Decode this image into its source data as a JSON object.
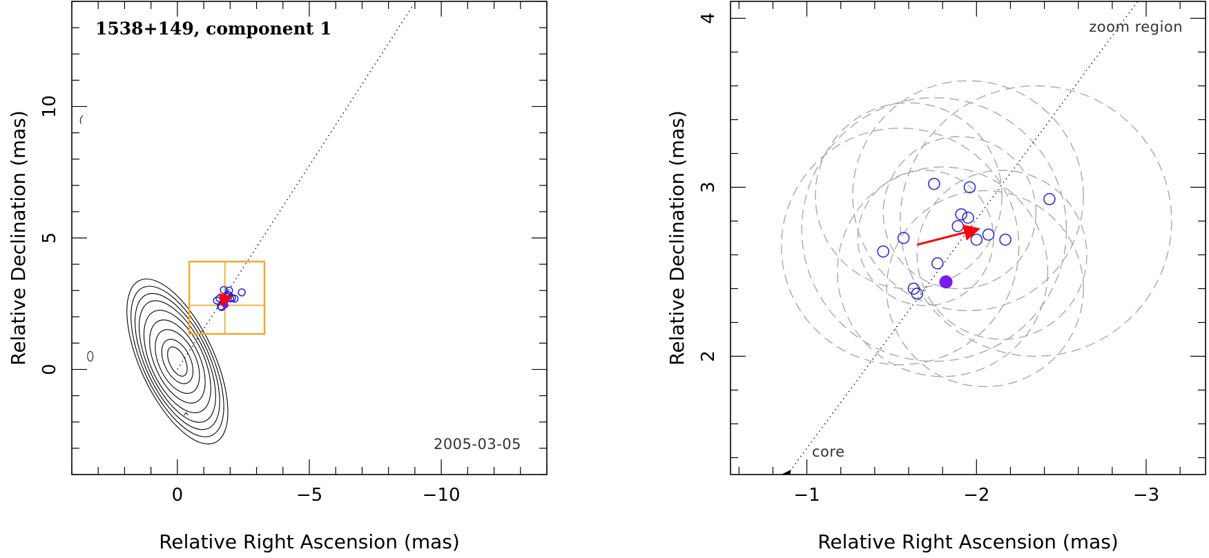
{
  "chart_data": [
    {
      "type": "scatter",
      "title": "1538+149, component 1",
      "epoch": "2005-03-05",
      "xlabel": "Relative Right Ascension (mas)",
      "ylabel": "Relative Declination (mas)",
      "xlim": [
        4,
        -14
      ],
      "ylim": [
        -4,
        14
      ],
      "x_reversed": true,
      "xticks": [
        0,
        -5,
        -10
      ],
      "xtick_labels": [
        "0",
        "−5",
        "−10"
      ],
      "yticks": [
        0,
        5,
        10
      ],
      "ytick_labels": [
        "0",
        "5",
        "10"
      ],
      "contours": {
        "center": [
          0,
          0.3
        ],
        "major_axis_pa_deg": 25,
        "axes": [
          [
            0.6,
            0.3
          ],
          [
            0.9,
            0.5
          ],
          [
            1.3,
            0.7
          ],
          [
            1.7,
            0.85
          ],
          [
            2.1,
            1.0
          ],
          [
            2.5,
            1.1
          ],
          [
            2.8,
            1.2
          ],
          [
            3.1,
            1.3
          ],
          [
            3.4,
            1.4
          ]
        ]
      },
      "jet_direction": {
        "from": [
          0,
          0
        ],
        "to": [
          -8.9,
          13.8
        ],
        "style": "dotted"
      },
      "zoom_box": {
        "x": [
          -0.45,
          -3.3
        ],
        "y": [
          1.35,
          4.1
        ],
        "crosshair": [
          -1.8,
          2.44
        ]
      },
      "component_fits": [
        {
          "x": -1.5,
          "y": 2.62
        },
        {
          "x": -1.6,
          "y": 2.7
        },
        {
          "x": -1.65,
          "y": 2.4
        },
        {
          "x": -1.68,
          "y": 2.37
        },
        {
          "x": -1.77,
          "y": 2.55
        },
        {
          "x": -1.76,
          "y": 3.02
        },
        {
          "x": -1.88,
          "y": 2.77
        },
        {
          "x": -1.9,
          "y": 2.84
        },
        {
          "x": -1.95,
          "y": 2.82
        },
        {
          "x": -1.96,
          "y": 3.0
        },
        {
          "x": -2.0,
          "y": 2.7
        },
        {
          "x": -2.07,
          "y": 2.72
        },
        {
          "x": -2.17,
          "y": 2.69
        },
        {
          "x": -2.44,
          "y": 2.93
        }
      ],
      "mean_position": {
        "x": -1.82,
        "y": 2.44
      },
      "motion_vector": {
        "from": [
          -1.65,
          2.65
        ],
        "to": [
          -2.0,
          2.75
        ]
      },
      "grid": false
    },
    {
      "type": "scatter",
      "label": "zoom region",
      "core_label": "core",
      "xlabel": "Relative Right Ascension (mas)",
      "ylabel": "Relative Declination (mas)",
      "xlim": [
        -0.55,
        -3.35
      ],
      "ylim": [
        1.3,
        4.1
      ],
      "x_reversed": true,
      "xticks": [
        -1,
        -2,
        -3
      ],
      "xtick_labels": [
        "−1",
        "−2",
        "−3"
      ],
      "yticks": [
        2,
        3,
        4
      ],
      "ytick_labels": [
        "2",
        "3",
        "4"
      ],
      "component_fits": [
        {
          "x": -1.45,
          "y": 2.62
        },
        {
          "x": -1.57,
          "y": 2.7
        },
        {
          "x": -1.63,
          "y": 2.4
        },
        {
          "x": -1.65,
          "y": 2.37
        },
        {
          "x": -1.77,
          "y": 2.55
        },
        {
          "x": -1.75,
          "y": 3.02
        },
        {
          "x": -1.89,
          "y": 2.77
        },
        {
          "x": -1.91,
          "y": 2.84
        },
        {
          "x": -1.95,
          "y": 2.82
        },
        {
          "x": -1.96,
          "y": 3.0
        },
        {
          "x": -2.0,
          "y": 2.69
        },
        {
          "x": -2.07,
          "y": 2.72
        },
        {
          "x": -2.17,
          "y": 2.69
        },
        {
          "x": -2.43,
          "y": 2.93
        }
      ],
      "mean_position": {
        "x": -1.82,
        "y": 2.44
      },
      "motion_vector": {
        "from": [
          -1.65,
          2.66
        ],
        "to": [
          -2.0,
          2.75
        ]
      },
      "uncertainty_ellipses": [
        {
          "cx": -1.75,
          "cy": 2.75,
          "r": 0.78
        },
        {
          "cx": -1.95,
          "cy": 2.95,
          "r": 0.68
        },
        {
          "cx": -2.35,
          "cy": 2.8,
          "r": 0.8
        },
        {
          "cx": -1.8,
          "cy": 2.5,
          "r": 0.62
        },
        {
          "cx": -1.6,
          "cy": 2.95,
          "r": 0.55
        },
        {
          "cx": -2.15,
          "cy": 2.6,
          "r": 0.5
        },
        {
          "cx": -1.9,
          "cy": 2.85,
          "r": 0.45
        },
        {
          "cx": -1.55,
          "cy": 2.65,
          "r": 0.7
        },
        {
          "cx": -2.05,
          "cy": 2.4,
          "r": 0.58
        },
        {
          "cx": -1.7,
          "cy": 2.7,
          "r": 0.4
        }
      ],
      "jet_direction": {
        "from": [
          -0.9,
          1.32
        ],
        "to": [
          -2.95,
          4.1
        ],
        "style": "dotted"
      },
      "grid": false
    }
  ]
}
